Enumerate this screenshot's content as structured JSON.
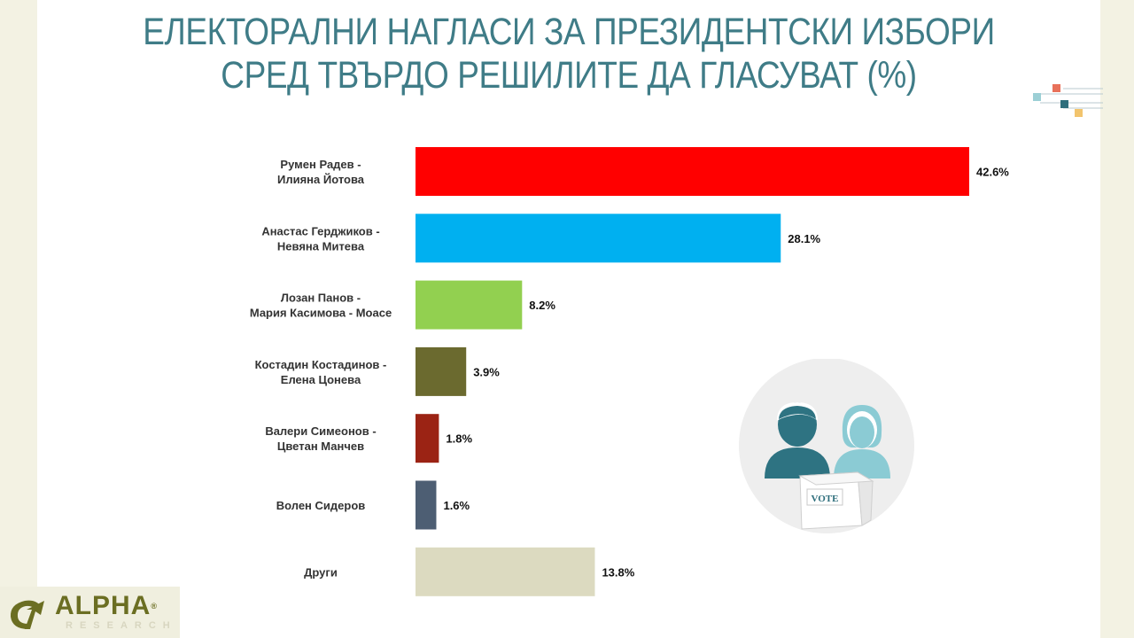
{
  "title": {
    "line1": "ЕЛЕКТОРАЛНИ НАГЛАСИ ЗА ПРЕЗИДЕНТСКИ ИЗБОРИ",
    "line2": "СРЕД ТВЪРДО РЕШИЛИТЕ ДА ГЛАСУВАТ (%)"
  },
  "chart_data": {
    "type": "bar",
    "orientation": "horizontal",
    "categories": [
      [
        "Румен Радев -",
        "Илияна Йотова"
      ],
      [
        "Анастас Герджиков -",
        "Невяна Митева"
      ],
      [
        "Лозан Панов -",
        "Мария Касимова - Моасе"
      ],
      [
        "Костадин Костадинов -",
        "Елена Цонева"
      ],
      [
        "Валери Симеонов -",
        "Цветан Манчев"
      ],
      [
        "Волен Сидеров"
      ],
      [
        "Други"
      ]
    ],
    "values": [
      42.6,
      28.1,
      8.2,
      3.9,
      1.8,
      1.6,
      13.8
    ],
    "value_labels": [
      "42.6%",
      "28.1%",
      "8.2%",
      "3.9%",
      "1.8%",
      "1.6%",
      "13.8%"
    ],
    "colors": [
      "#ff0000",
      "#00b0f0",
      "#92d050",
      "#6b6a2f",
      "#9b2314",
      "#4d5e73",
      "#dcdac0"
    ],
    "xlim": [
      0,
      42.6
    ],
    "grid": false,
    "legend": "none"
  },
  "illustration": {
    "ballot_text": "VOTE",
    "icons": [
      "man-voter-icon",
      "woman-voter-icon",
      "ballot-box-icon"
    ]
  },
  "logo": {
    "brand": "ALPHA",
    "registered": "®",
    "sub": "RESEARCH"
  }
}
